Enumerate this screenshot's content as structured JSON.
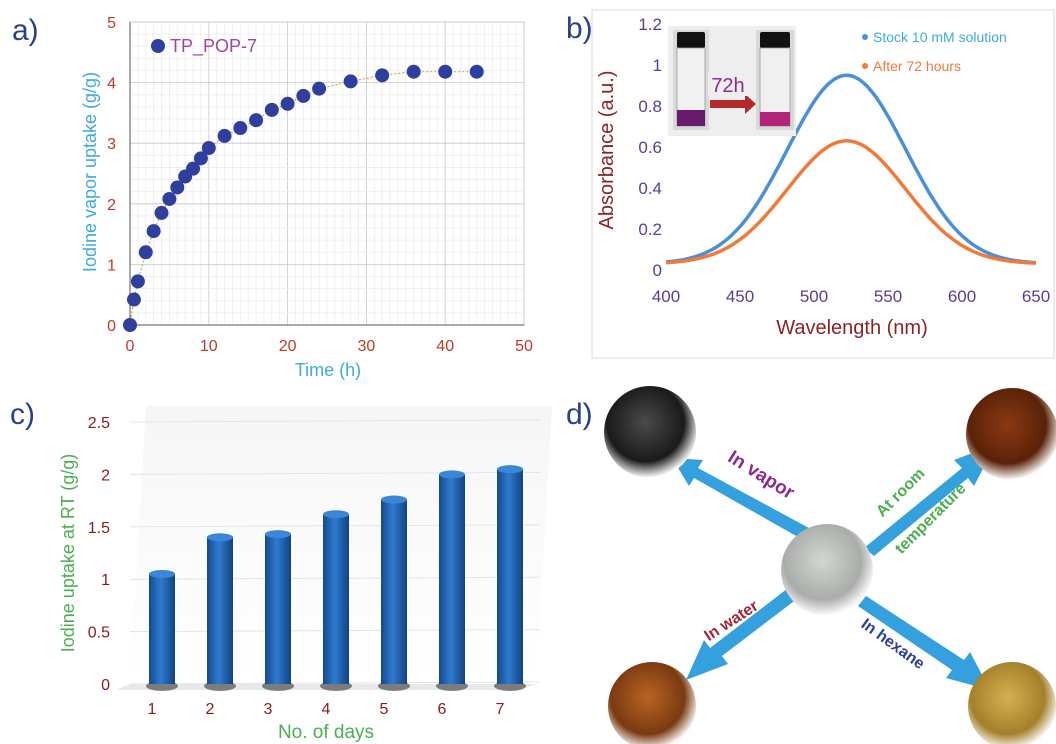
{
  "panels": {
    "a": "a)",
    "b": "b)",
    "c": "c)",
    "d": "d)"
  },
  "colors": {
    "tick_red": "#c0392b",
    "axis_blue": "#3fa9e0",
    "marker_navy": "#2e3f9e",
    "legend_purple": "#a0479c",
    "abs_axis": "#8b2323",
    "wl_ticks": "#5a3d9a",
    "stock_blue": "#4a90d9",
    "after_orange": "#ef7a3a",
    "bar_blue": "#1e5fb0",
    "bar_axis_green": "#4caf50",
    "bar_tick_red": "#8b1a1a",
    "arrow_blue": "#2a9bdc"
  },
  "chart_data": [
    {
      "id": "a",
      "type": "scatter",
      "legend": "TP_POP-7",
      "xlabel": "Time (h)",
      "ylabel": "Iodine vapor uptake (g/g)",
      "xlim": [
        0,
        50
      ],
      "ylim": [
        0,
        5
      ],
      "xticks": [
        "0",
        "10",
        "20",
        "30",
        "40",
        "50"
      ],
      "yticks": [
        "0",
        "1",
        "2",
        "3",
        "4",
        "5"
      ],
      "grid": true,
      "points": [
        [
          0,
          0
        ],
        [
          0.5,
          0.42
        ],
        [
          1,
          0.72
        ],
        [
          2,
          1.2
        ],
        [
          3,
          1.55
        ],
        [
          4,
          1.85
        ],
        [
          5,
          2.08
        ],
        [
          6,
          2.27
        ],
        [
          7,
          2.45
        ],
        [
          8,
          2.58
        ],
        [
          9,
          2.75
        ],
        [
          10,
          2.92
        ],
        [
          12,
          3.12
        ],
        [
          14,
          3.25
        ],
        [
          16,
          3.38
        ],
        [
          18,
          3.55
        ],
        [
          20,
          3.65
        ],
        [
          22,
          3.78
        ],
        [
          24,
          3.9
        ],
        [
          28,
          4.02
        ],
        [
          32,
          4.12
        ],
        [
          36,
          4.18
        ],
        [
          40,
          4.18
        ],
        [
          44,
          4.18
        ]
      ]
    },
    {
      "id": "b",
      "type": "line",
      "xlabel": "Wavelength (nm)",
      "ylabel": "Absorbance (a.u.)",
      "xlim": [
        400,
        650
      ],
      "ylim": [
        0,
        1.2
      ],
      "xticks": [
        "400",
        "450",
        "500",
        "550",
        "600",
        "650"
      ],
      "yticks": [
        "0",
        "0.2",
        "0.4",
        "0.6",
        "0.8",
        "1",
        "1.2"
      ],
      "inset_label": "72h",
      "series": [
        {
          "name": "Stock 10 mM solution",
          "peak_x": 522,
          "peak_y": 0.95,
          "baseline": 0.03,
          "width": 40
        },
        {
          "name": "After 72 hours",
          "peak_x": 522,
          "peak_y": 0.63,
          "baseline": 0.03,
          "width": 40
        }
      ]
    },
    {
      "id": "c",
      "type": "bar",
      "xlabel": "No. of days",
      "ylabel": "Iodine uptake  at RT (g/g)",
      "categories": [
        "1",
        "2",
        "3",
        "4",
        "5",
        "6",
        "7"
      ],
      "values": [
        1.05,
        1.4,
        1.43,
        1.62,
        1.76,
        2.0,
        2.05
      ],
      "ylim": [
        0,
        2.5
      ],
      "yticks": [
        "0",
        "0.5",
        "1",
        "1.5",
        "2",
        "2.5"
      ],
      "grid": true
    }
  ],
  "diagram": {
    "labels": {
      "vapor": "In vapor",
      "room": "At room",
      "temp": "temperature",
      "water": "In water",
      "hexane": "In hexane"
    }
  }
}
